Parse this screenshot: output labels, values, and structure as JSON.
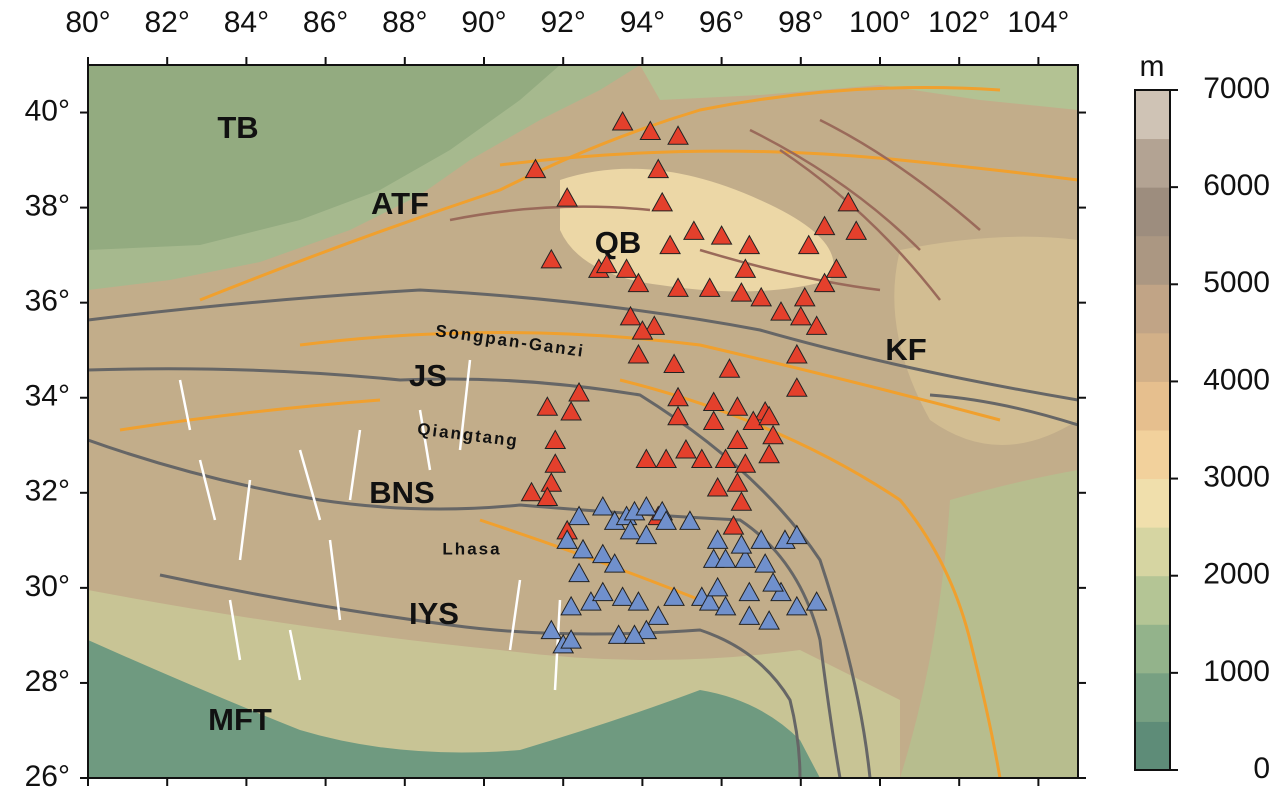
{
  "map": {
    "xlim": [
      80,
      105
    ],
    "ylim": [
      26,
      41
    ],
    "xticks": [
      {
        "value": 80,
        "label": "80°"
      },
      {
        "value": 82,
        "label": "82°"
      },
      {
        "value": 84,
        "label": "84°"
      },
      {
        "value": 86,
        "label": "86°"
      },
      {
        "value": 88,
        "label": "88°"
      },
      {
        "value": 90,
        "label": "90°"
      },
      {
        "value": 92,
        "label": "92°"
      },
      {
        "value": 94,
        "label": "94°"
      },
      {
        "value": 96,
        "label": "96°"
      },
      {
        "value": 98,
        "label": "98°"
      },
      {
        "value": 100,
        "label": "100°"
      },
      {
        "value": 102,
        "label": "102°"
      },
      {
        "value": 104,
        "label": "104°"
      }
    ],
    "yticks": [
      {
        "value": 26,
        "label": "26°"
      },
      {
        "value": 28,
        "label": "28°"
      },
      {
        "value": 30,
        "label": "30°"
      },
      {
        "value": 32,
        "label": "32°"
      },
      {
        "value": 34,
        "label": "34°"
      },
      {
        "value": 36,
        "label": "36°"
      },
      {
        "value": 38,
        "label": "38°"
      },
      {
        "value": 40,
        "label": "40°"
      }
    ],
    "labels": {
      "tb": "TB",
      "atf": "ATF",
      "qb": "QB",
      "kf": "KF",
      "js": "JS",
      "songpan": "Songpan-Ganzi",
      "qiangtang": "Qiangtang",
      "bns": "BNS",
      "lhasa": "Lhasa",
      "iys": "IYS",
      "mft": "MFT"
    },
    "stations": {
      "red": {
        "color": "#e4402c",
        "points": [
          [
            93.5,
            39.8
          ],
          [
            94.2,
            39.6
          ],
          [
            94.9,
            39.5
          ],
          [
            91.3,
            38.8
          ],
          [
            94.4,
            38.8
          ],
          [
            92.1,
            38.2
          ],
          [
            94.5,
            38.1
          ],
          [
            99.2,
            38.1
          ],
          [
            98.6,
            37.6
          ],
          [
            99.4,
            37.5
          ],
          [
            95.3,
            37.5
          ],
          [
            96.0,
            37.4
          ],
          [
            94.7,
            37.2
          ],
          [
            96.7,
            37.2
          ],
          [
            98.2,
            37.2
          ],
          [
            91.7,
            36.9
          ],
          [
            92.9,
            36.7
          ],
          [
            93.1,
            36.8
          ],
          [
            93.6,
            36.7
          ],
          [
            93.9,
            36.4
          ],
          [
            94.9,
            36.3
          ],
          [
            95.7,
            36.3
          ],
          [
            96.6,
            36.7
          ],
          [
            96.5,
            36.2
          ],
          [
            97.0,
            36.1
          ],
          [
            98.9,
            36.7
          ],
          [
            98.6,
            36.4
          ],
          [
            98.1,
            36.1
          ],
          [
            97.5,
            35.8
          ],
          [
            98.0,
            35.7
          ],
          [
            98.4,
            35.5
          ],
          [
            93.7,
            35.7
          ],
          [
            94.3,
            35.5
          ],
          [
            94.0,
            35.4
          ],
          [
            93.9,
            34.9
          ],
          [
            94.8,
            34.7
          ],
          [
            97.9,
            34.9
          ],
          [
            96.2,
            34.6
          ],
          [
            97.9,
            34.2
          ],
          [
            94.9,
            34.0
          ],
          [
            94.9,
            33.6
          ],
          [
            95.8,
            33.9
          ],
          [
            96.4,
            33.8
          ],
          [
            95.8,
            33.5
          ],
          [
            97.1,
            33.7
          ],
          [
            96.8,
            33.5
          ],
          [
            97.2,
            33.6
          ],
          [
            91.6,
            33.8
          ],
          [
            92.2,
            33.7
          ],
          [
            92.4,
            34.1
          ],
          [
            91.8,
            33.1
          ],
          [
            96.4,
            33.1
          ],
          [
            97.3,
            33.2
          ],
          [
            94.1,
            32.7
          ],
          [
            94.6,
            32.7
          ],
          [
            95.1,
            32.9
          ],
          [
            95.5,
            32.7
          ],
          [
            96.1,
            32.7
          ],
          [
            96.6,
            32.6
          ],
          [
            97.2,
            32.8
          ],
          [
            91.8,
            32.6
          ],
          [
            91.7,
            32.2
          ],
          [
            91.2,
            32.0
          ],
          [
            91.6,
            31.9
          ],
          [
            95.9,
            32.1
          ],
          [
            96.4,
            32.2
          ],
          [
            96.5,
            31.8
          ],
          [
            96.3,
            31.3
          ],
          [
            92.1,
            31.2
          ],
          [
            94.4,
            31.5
          ]
        ]
      },
      "blue": {
        "color": "#7090cc",
        "points": [
          [
            92.4,
            31.5
          ],
          [
            93.0,
            31.7
          ],
          [
            93.3,
            31.4
          ],
          [
            93.6,
            31.5
          ],
          [
            93.8,
            31.6
          ],
          [
            94.1,
            31.7
          ],
          [
            94.5,
            31.6
          ],
          [
            93.7,
            31.2
          ],
          [
            94.1,
            31.1
          ],
          [
            94.6,
            31.4
          ],
          [
            95.2,
            31.4
          ],
          [
            92.1,
            31.0
          ],
          [
            92.5,
            30.8
          ],
          [
            93.0,
            30.7
          ],
          [
            93.3,
            30.5
          ],
          [
            92.4,
            30.3
          ],
          [
            92.7,
            29.7
          ],
          [
            93.0,
            29.9
          ],
          [
            92.2,
            29.6
          ],
          [
            93.5,
            29.8
          ],
          [
            93.9,
            29.7
          ],
          [
            94.8,
            29.8
          ],
          [
            95.5,
            29.8
          ],
          [
            95.7,
            29.7
          ],
          [
            96.1,
            29.6
          ],
          [
            96.7,
            29.9
          ],
          [
            97.5,
            29.9
          ],
          [
            97.9,
            29.6
          ],
          [
            98.4,
            29.7
          ],
          [
            96.7,
            29.4
          ],
          [
            97.2,
            29.3
          ],
          [
            97.3,
            30.1
          ],
          [
            97.1,
            30.5
          ],
          [
            95.9,
            31.0
          ],
          [
            95.8,
            30.6
          ],
          [
            96.1,
            30.6
          ],
          [
            96.6,
            30.6
          ],
          [
            96.5,
            30.9
          ],
          [
            97.0,
            31.0
          ],
          [
            97.6,
            31.0
          ],
          [
            97.9,
            31.1
          ],
          [
            95.9,
            30.0
          ],
          [
            94.4,
            29.4
          ],
          [
            94.1,
            29.1
          ],
          [
            93.4,
            29.0
          ],
          [
            93.8,
            29.0
          ],
          [
            91.7,
            29.1
          ],
          [
            92.0,
            28.8
          ],
          [
            92.2,
            28.9
          ]
        ]
      }
    },
    "colorbar": {
      "unit": "m",
      "lim": [
        0,
        7000
      ],
      "ticks": [
        0,
        1000,
        2000,
        3000,
        4000,
        5000,
        6000,
        7000
      ],
      "colors": [
        "#5e8c78",
        "#77a082",
        "#93b38b",
        "#b4c595",
        "#d6d5a2",
        "#f0dfac",
        "#f2d19c",
        "#e6bf8e",
        "#d2b088",
        "#c1a486",
        "#ab9782",
        "#9d8d7e",
        "#b3a393",
        "#cfc3b5"
      ]
    }
  }
}
